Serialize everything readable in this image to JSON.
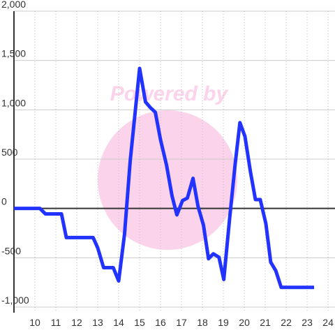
{
  "chart_data": {
    "type": "line",
    "watermark": "Powered by",
    "x": [
      9,
      10.24,
      10.5,
      11.27,
      11.5,
      12.78,
      13.0,
      13.28,
      13.74,
      14.0,
      14.28,
      14.55,
      15.0,
      15.28,
      15.5,
      15.75,
      16.0,
      16.28,
      16.55,
      16.78,
      17.05,
      17.28,
      17.55,
      17.79,
      18.05,
      18.29,
      18.52,
      18.79,
      19.02,
      19.29,
      19.56,
      19.79,
      20.03,
      20.29,
      20.53,
      20.76,
      21.03,
      21.26,
      21.5,
      21.76,
      23.33
    ],
    "series": [
      {
        "color": "#2233ff",
        "values": [
          0,
          0,
          -55,
          -55,
          -295,
          -295,
          -400,
          -600,
          -600,
          -735,
          -260,
          480,
          1420,
          1080,
          1025,
          975,
          695,
          445,
          125,
          -65,
          80,
          105,
          305,
          20,
          -170,
          -510,
          -460,
          -495,
          -720,
          -120,
          445,
          870,
          730,
          375,
          90,
          90,
          -155,
          -545,
          -630,
          -800,
          -800
        ]
      }
    ],
    "xlim": [
      9,
      24.33
    ],
    "ylim": [
      -1000,
      2000
    ],
    "xticks": [
      10,
      11,
      12,
      13,
      14,
      15,
      16,
      17,
      18,
      19,
      20,
      21,
      22,
      23,
      24
    ],
    "yticks": [
      {
        "value": -1000,
        "label": "-1,000"
      },
      -500,
      0,
      500,
      {
        "value": 1000,
        "label": "1,000"
      },
      {
        "value": 1500,
        "label": "1,500"
      },
      {
        "value": 2000,
        "label": "2,000"
      }
    ],
    "grid": true
  }
}
